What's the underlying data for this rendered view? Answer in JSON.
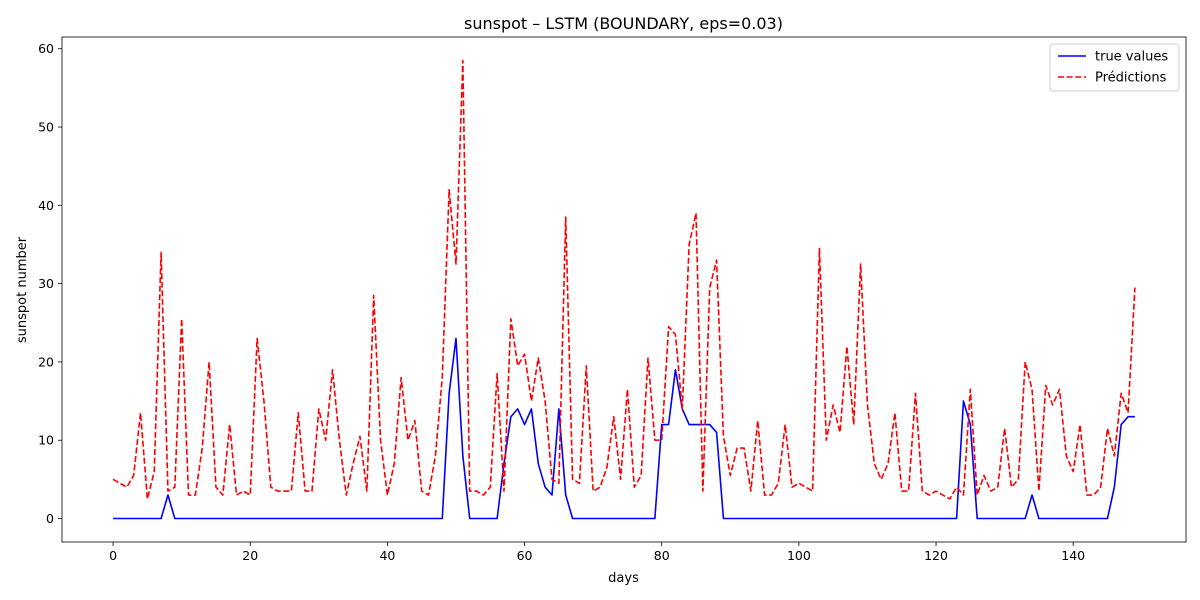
{
  "chart_data": {
    "type": "line",
    "title": "sunspot – LSTM (BOUNDARY, eps=0.03)",
    "xlabel": "days",
    "ylabel": "sunspot number",
    "xlim": [
      -7.45,
      156.45
    ],
    "ylim": [
      -3,
      61.5
    ],
    "xticks": [
      0,
      20,
      40,
      60,
      80,
      100,
      120,
      140
    ],
    "yticks": [
      0,
      10,
      20,
      30,
      40,
      50,
      60
    ],
    "grid": false,
    "legend_position": "top-right",
    "x": [
      0,
      1,
      2,
      3,
      4,
      5,
      6,
      7,
      8,
      9,
      10,
      11,
      12,
      13,
      14,
      15,
      16,
      17,
      18,
      19,
      20,
      21,
      22,
      23,
      24,
      25,
      26,
      27,
      28,
      29,
      30,
      31,
      32,
      33,
      34,
      35,
      36,
      37,
      38,
      39,
      40,
      41,
      42,
      43,
      44,
      45,
      46,
      47,
      48,
      49,
      50,
      51,
      52,
      53,
      54,
      55,
      56,
      57,
      58,
      59,
      60,
      61,
      62,
      63,
      64,
      65,
      66,
      67,
      68,
      69,
      70,
      71,
      72,
      73,
      74,
      75,
      76,
      77,
      78,
      79,
      80,
      81,
      82,
      83,
      84,
      85,
      86,
      87,
      88,
      89,
      90,
      91,
      92,
      93,
      94,
      95,
      96,
      97,
      98,
      99,
      100,
      101,
      102,
      103,
      104,
      105,
      106,
      107,
      108,
      109,
      110,
      111,
      112,
      113,
      114,
      115,
      116,
      117,
      118,
      119,
      120,
      121,
      122,
      123,
      124,
      125,
      126,
      127,
      128,
      129,
      130,
      131,
      132,
      133,
      134,
      135,
      136,
      137,
      138,
      139,
      140,
      141,
      142,
      143,
      144,
      145,
      146,
      147,
      148,
      149
    ],
    "series": [
      {
        "name": "true values",
        "color": "#0000ff",
        "dash": "solid",
        "values": [
          0,
          0,
          0,
          0,
          0,
          0,
          0,
          0,
          3,
          0,
          0,
          0,
          0,
          0,
          0,
          0,
          0,
          0,
          0,
          0,
          0,
          0,
          0,
          0,
          0,
          0,
          0,
          0,
          0,
          0,
          0,
          0,
          0,
          0,
          0,
          0,
          0,
          0,
          0,
          0,
          0,
          0,
          0,
          0,
          0,
          0,
          0,
          0,
          0,
          16,
          23,
          8,
          0,
          0,
          0,
          0,
          0,
          7,
          13,
          14,
          12,
          14,
          7,
          4,
          3,
          14,
          3,
          0,
          0,
          0,
          0,
          0,
          0,
          0,
          0,
          0,
          0,
          0,
          0,
          0,
          12,
          12,
          19,
          14,
          12,
          12,
          12,
          12,
          11,
          0,
          0,
          0,
          0,
          0,
          0,
          0,
          0,
          0,
          0,
          0,
          0,
          0,
          0,
          0,
          0,
          0,
          0,
          0,
          0,
          0,
          0,
          0,
          0,
          0,
          0,
          0,
          0,
          0,
          0,
          0,
          0,
          0,
          0,
          0,
          15,
          12,
          0,
          0,
          0,
          0,
          0,
          0,
          0,
          0,
          3,
          0,
          0,
          0,
          0,
          0,
          0,
          0,
          0,
          0,
          0,
          0,
          4,
          12,
          13,
          13
        ]
      },
      {
        "name": "Prédictions",
        "color": "#ff0000",
        "dash": "dashed",
        "values": [
          5,
          4.5,
          4,
          5.5,
          13.5,
          2.5,
          6,
          34,
          3.5,
          4,
          25.5,
          3,
          3,
          9,
          20,
          4,
          3,
          12,
          3,
          3.5,
          3,
          23,
          15,
          4,
          3.5,
          3.5,
          3.5,
          13.5,
          3.5,
          3.5,
          14,
          10,
          19,
          10,
          3,
          7,
          10.5,
          3.5,
          28.5,
          10,
          3,
          7,
          18,
          10,
          12.5,
          3.5,
          3,
          8,
          18,
          42,
          32.5,
          58.5,
          3.5,
          3.5,
          3,
          4,
          18.5,
          3.5,
          25.5,
          19.5,
          21,
          15,
          20.5,
          15,
          5,
          4.5,
          38.5,
          5,
          4.5,
          19.5,
          3.5,
          4,
          6.5,
          13,
          5,
          16.5,
          4,
          5.5,
          20.5,
          10,
          10,
          24.5,
          23.5,
          14,
          35,
          39,
          3.5,
          29.5,
          33,
          10.5,
          5.5,
          9,
          9,
          3.5,
          12.5,
          3,
          3,
          4.5,
          12,
          4,
          4.5,
          4,
          3.5,
          34.5,
          10,
          14.5,
          11,
          22,
          12,
          32.5,
          14.5,
          7,
          5,
          7,
          13.5,
          3.5,
          3.5,
          16,
          3.5,
          3,
          3.5,
          3,
          2.5,
          4,
          3,
          16.5,
          3,
          5.5,
          3.5,
          4,
          11.5,
          4,
          5,
          20,
          16.5,
          3.5,
          17,
          14.5,
          16.5,
          8,
          6,
          12,
          3,
          3,
          4,
          11.5,
          8,
          16,
          13.5,
          29.5
        ]
      }
    ]
  }
}
